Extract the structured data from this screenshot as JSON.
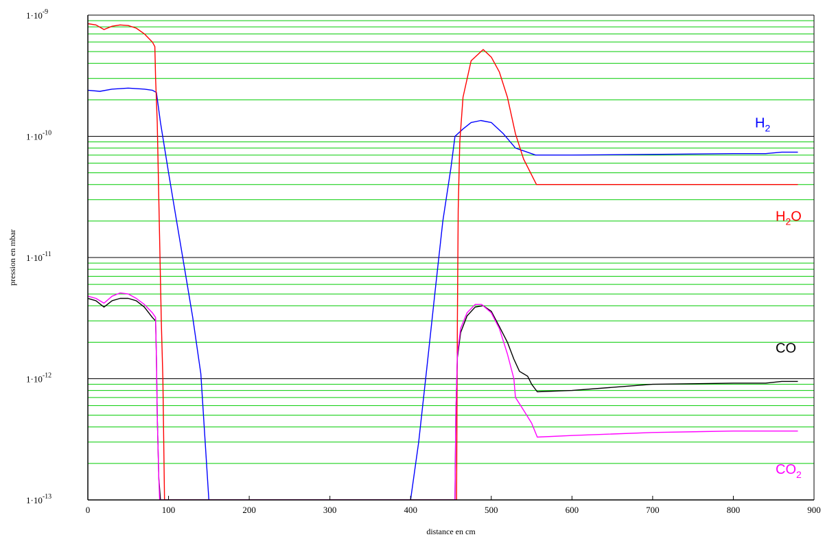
{
  "chart_data": {
    "type": "line",
    "title": "",
    "xlabel": "distance en cm",
    "ylabel": "pression en mbar",
    "x_scale": "linear",
    "y_scale": "log",
    "xlim": [
      0,
      900
    ],
    "ylim": [
      1e-13,
      1e-09
    ],
    "x_ticks": [
      0,
      100,
      200,
      300,
      400,
      500,
      600,
      700,
      800,
      900
    ],
    "x_tick_labels": [
      "0",
      "100",
      "200",
      "300",
      "400",
      "500",
      "600",
      "700",
      "800",
      "900"
    ],
    "y_ticks": [
      1e-13,
      1e-12,
      1e-11,
      1e-10,
      1e-09
    ],
    "y_tick_labels": [
      {
        "mant": "1·10",
        "exp": "-13"
      },
      {
        "mant": "1·10",
        "exp": "-12"
      },
      {
        "mant": "1·10",
        "exp": "-11"
      },
      {
        "mant": "1·10",
        "exp": "-10"
      },
      {
        "mant": "1·10",
        "exp": "-9"
      }
    ],
    "grid": {
      "major": true,
      "minor": true,
      "major_color": "#000000",
      "minor_color": "#00cc00"
    },
    "series": [
      {
        "name": "H2",
        "label_main": "H",
        "label_sub": "2",
        "label_suffix": "",
        "color": "#0000ff",
        "points": [
          [
            0,
            2.4e-10
          ],
          [
            15,
            2.35e-10
          ],
          [
            30,
            2.45e-10
          ],
          [
            50,
            2.5e-10
          ],
          [
            70,
            2.45e-10
          ],
          [
            80,
            2.4e-10
          ],
          [
            85,
            2.3e-10
          ],
          [
            90,
            1.3e-10
          ],
          [
            100,
            5e-11
          ],
          [
            110,
            2e-11
          ],
          [
            120,
            8e-12
          ],
          [
            130,
            3.2e-12
          ],
          [
            140,
            1.1e-12
          ],
          [
            150,
            1e-13
          ],
          [
            400,
            1e-13
          ],
          [
            410,
            3e-13
          ],
          [
            420,
            1.2e-12
          ],
          [
            430,
            5e-12
          ],
          [
            440,
            2e-11
          ],
          [
            450,
            5.5e-11
          ],
          [
            455,
            1e-10
          ],
          [
            465,
            1.15e-10
          ],
          [
            475,
            1.3e-10
          ],
          [
            487,
            1.35e-10
          ],
          [
            500,
            1.3e-10
          ],
          [
            515,
            1.05e-10
          ],
          [
            530,
            8e-11
          ],
          [
            555,
            7e-11
          ],
          [
            600,
            7e-11
          ],
          [
            700,
            7.1e-11
          ],
          [
            800,
            7.2e-11
          ],
          [
            840,
            7.2e-11
          ],
          [
            860,
            7.4e-11
          ],
          [
            880,
            7.4e-11
          ]
        ]
      },
      {
        "name": "H2O",
        "label_main": "H",
        "label_sub": "2",
        "label_suffix": "O",
        "color": "#ff0000",
        "points": [
          [
            0,
            8.5e-10
          ],
          [
            10,
            8.3e-10
          ],
          [
            20,
            7.6e-10
          ],
          [
            30,
            8.1e-10
          ],
          [
            40,
            8.3e-10
          ],
          [
            50,
            8.2e-10
          ],
          [
            60,
            7.8e-10
          ],
          [
            70,
            7e-10
          ],
          [
            80,
            6e-10
          ],
          [
            83,
            5.5e-10
          ],
          [
            84,
            3e-10
          ],
          [
            86,
            1.3e-10
          ],
          [
            88,
            3e-11
          ],
          [
            91,
            3e-12
          ],
          [
            93,
            1e-12
          ],
          [
            95,
            1e-13
          ],
          [
            457,
            1e-13
          ],
          [
            458,
            3e-12
          ],
          [
            459,
            2.5e-11
          ],
          [
            461,
            9e-11
          ],
          [
            465,
            2.1e-10
          ],
          [
            475,
            4.2e-10
          ],
          [
            490,
            5.2e-10
          ],
          [
            500,
            4.5e-10
          ],
          [
            510,
            3.4e-10
          ],
          [
            520,
            2.1e-10
          ],
          [
            530,
            1.05e-10
          ],
          [
            540,
            6.5e-11
          ],
          [
            556,
            4e-11
          ],
          [
            600,
            4e-11
          ],
          [
            700,
            4e-11
          ],
          [
            800,
            4e-11
          ],
          [
            880,
            4e-11
          ]
        ]
      },
      {
        "name": "CO",
        "label_main": "CO",
        "label_sub": "",
        "label_suffix": "",
        "color": "#000000",
        "points": [
          [
            0,
            4.6e-12
          ],
          [
            10,
            4.4e-12
          ],
          [
            20,
            3.9e-12
          ],
          [
            30,
            4.4e-12
          ],
          [
            40,
            4.6e-12
          ],
          [
            50,
            4.6e-12
          ],
          [
            60,
            4.4e-12
          ],
          [
            70,
            3.9e-12
          ],
          [
            80,
            3.2e-12
          ],
          [
            84,
            3e-12
          ],
          [
            85,
            1.5e-12
          ],
          [
            86,
            5e-13
          ],
          [
            88,
            1.5e-13
          ],
          [
            90,
            1e-13
          ],
          [
            455,
            1e-13
          ],
          [
            456,
            5e-13
          ],
          [
            458,
            1.5e-12
          ],
          [
            462,
            2.4e-12
          ],
          [
            470,
            3.3e-12
          ],
          [
            480,
            3.9e-12
          ],
          [
            490,
            4e-12
          ],
          [
            500,
            3.6e-12
          ],
          [
            510,
            2.7e-12
          ],
          [
            520,
            2e-12
          ],
          [
            528,
            1.45e-12
          ],
          [
            535,
            1.15e-12
          ],
          [
            545,
            1.05e-12
          ],
          [
            550,
            9e-13
          ],
          [
            557,
            7.8e-13
          ],
          [
            600,
            8e-13
          ],
          [
            700,
            9e-13
          ],
          [
            800,
            9.2e-13
          ],
          [
            840,
            9.2e-13
          ],
          [
            860,
            9.5e-13
          ],
          [
            880,
            9.5e-13
          ]
        ]
      },
      {
        "name": "CO2",
        "label_main": "CO",
        "label_sub": "2",
        "label_suffix": "",
        "color": "#ff00ff",
        "points": [
          [
            0,
            4.8e-12
          ],
          [
            10,
            4.6e-12
          ],
          [
            20,
            4.2e-12
          ],
          [
            30,
            4.8e-12
          ],
          [
            40,
            5.1e-12
          ],
          [
            50,
            5e-12
          ],
          [
            60,
            4.6e-12
          ],
          [
            70,
            4.1e-12
          ],
          [
            80,
            3.5e-12
          ],
          [
            84,
            3.2e-12
          ],
          [
            85,
            1.5e-12
          ],
          [
            86,
            5e-13
          ],
          [
            88,
            1.5e-13
          ],
          [
            89,
            1e-13
          ],
          [
            455,
            1e-13
          ],
          [
            456,
            5e-13
          ],
          [
            458,
            1.6e-12
          ],
          [
            462,
            2.6e-12
          ],
          [
            470,
            3.5e-12
          ],
          [
            480,
            4.1e-12
          ],
          [
            488,
            4.1e-12
          ],
          [
            500,
            3.5e-12
          ],
          [
            510,
            2.6e-12
          ],
          [
            520,
            1.6e-12
          ],
          [
            528,
            1e-12
          ],
          [
            530,
            7e-13
          ],
          [
            540,
            5.5e-13
          ],
          [
            550,
            4.3e-13
          ],
          [
            557,
            3.3e-13
          ],
          [
            600,
            3.4e-13
          ],
          [
            700,
            3.6e-13
          ],
          [
            800,
            3.7e-13
          ],
          [
            840,
            3.7e-13
          ],
          [
            880,
            3.7e-13
          ]
        ]
      }
    ]
  }
}
